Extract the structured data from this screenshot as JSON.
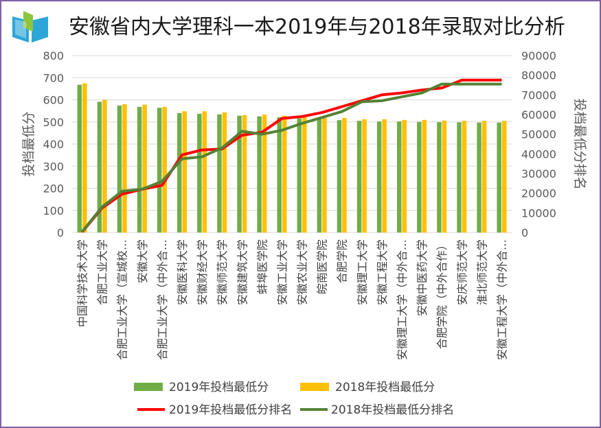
{
  "title": "安徽省内大学理科一本2019年与2018年录取对比分析",
  "colors": {
    "bar2019": "#70ad47",
    "bar2018": "#ffc000",
    "line2019": "#ff0000",
    "line2018": "#548235",
    "logo_teal": "#2ca6d6",
    "logo_green": "#8cc63f"
  },
  "logo_icon": "book-logo-icon",
  "chart_data": {
    "type": "bar",
    "title": "安徽省内大学理科一本2019年与2018年录取对比分析",
    "ylabel": "投档最低分",
    "y2label": "投档最低分排名",
    "ylim": [
      0,
      800
    ],
    "y2lim": [
      0,
      90000
    ],
    "yticks": [
      0,
      100,
      200,
      300,
      400,
      500,
      600,
      700,
      800
    ],
    "y2ticks": [
      0,
      10000,
      20000,
      30000,
      40000,
      50000,
      60000,
      70000,
      80000,
      90000
    ],
    "legend_position": "bottom",
    "categories": [
      "中国科学技术大学",
      "合肥工业大学",
      "合肥工业大学（宣城校…",
      "安徽大学",
      "合肥工业大学（中外合…",
      "安徽医科大学",
      "安徽财经大学",
      "安徽师范大学",
      "安徽建筑大学",
      "蚌埠医学院",
      "安徽工业大学",
      "安徽农业大学",
      "皖南医学院",
      "合肥学院",
      "安徽理工大学",
      "安徽工程大学",
      "安徽理工大学（中外合…",
      "安徽中医药大学",
      "合肥学院（中外合作）",
      "安庆师范大学",
      "淮北师范大学",
      "安徽工程大学（中外合…"
    ],
    "series": [
      {
        "name": "2019年投档最低分",
        "type": "bar",
        "axis": "left",
        "values": [
          668,
          591,
          574,
          568,
          564,
          540,
          537,
          534,
          528,
          525,
          521,
          516,
          512,
          508,
          505,
          502,
          502,
          500,
          499,
          498,
          497,
          497
        ]
      },
      {
        "name": "2018年投档最低分",
        "type": "bar",
        "axis": "left",
        "values": [
          674,
          600,
          580,
          578,
          568,
          548,
          548,
          543,
          531,
          533,
          528,
          522,
          519,
          518,
          512,
          512,
          509,
          509,
          506,
          505,
          505,
          505
        ]
      },
      {
        "name": "2019年投档最低分排名",
        "type": "line",
        "axis": "right",
        "values": [
          200,
          12500,
          19500,
          22000,
          24000,
          39500,
          42000,
          42500,
          49500,
          51000,
          58000,
          59000,
          61000,
          64000,
          67000,
          70000,
          71000,
          72500,
          73500,
          77500,
          77500,
          77500
        ]
      },
      {
        "name": "2018年投档最低分排名",
        "type": "line",
        "axis": "right",
        "values": [
          400,
          13000,
          21000,
          22000,
          26000,
          37500,
          38500,
          43000,
          51500,
          50000,
          52000,
          55500,
          58500,
          61500,
          66500,
          67000,
          69000,
          71000,
          75500,
          75500,
          75500,
          75500
        ]
      }
    ]
  }
}
